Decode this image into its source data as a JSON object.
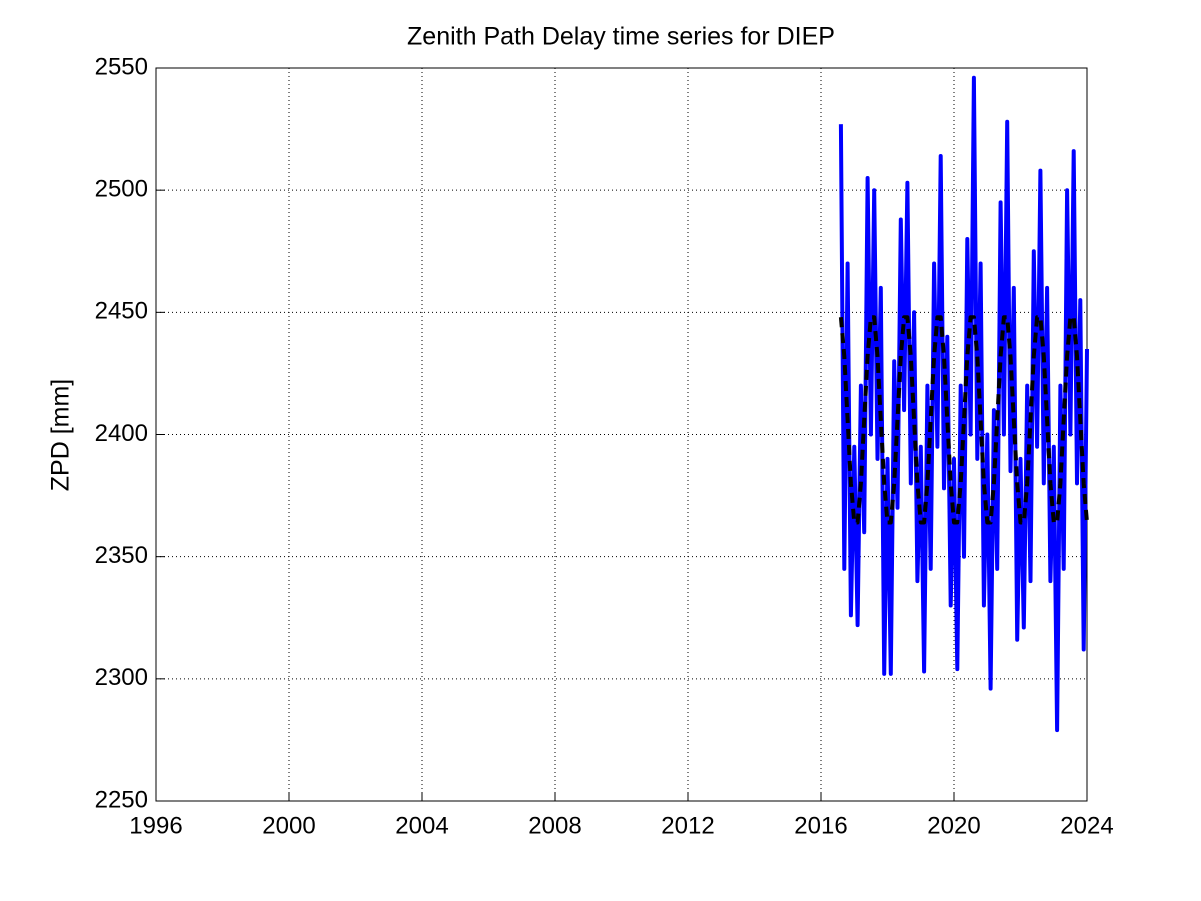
{
  "chart_data": {
    "type": "line",
    "title": "Zenith Path Delay time series for DIEP",
    "y_label": "ZPD [mm]",
    "x": [
      2016.6,
      2016.7,
      2016.8,
      2016.9,
      2017.0,
      2017.1,
      2017.2,
      2017.3,
      2017.4,
      2017.5,
      2017.6,
      2017.7,
      2017.8,
      2017.9,
      2018.0,
      2018.1,
      2018.2,
      2018.3,
      2018.4,
      2018.5,
      2018.6,
      2018.7,
      2018.8,
      2018.9,
      2019.0,
      2019.1,
      2019.2,
      2019.3,
      2019.4,
      2019.5,
      2019.6,
      2019.7,
      2019.8,
      2019.9,
      2020.0,
      2020.1,
      2020.2,
      2020.3,
      2020.4,
      2020.5,
      2020.6,
      2020.7,
      2020.8,
      2020.9,
      2021.0,
      2021.1,
      2021.2,
      2021.3,
      2021.4,
      2021.5,
      2021.6,
      2021.7,
      2021.8,
      2021.9,
      2022.0,
      2022.1,
      2022.2,
      2022.3,
      2022.4,
      2022.5,
      2022.6,
      2022.7,
      2022.8,
      2022.9,
      2023.0,
      2023.1,
      2023.2,
      2023.3,
      2023.4,
      2023.5,
      2023.6,
      2023.7,
      2023.8,
      2023.9,
      2024.0
    ],
    "series": [
      {
        "color": "#0000ff",
        "line_width": 4,
        "dashed": false,
        "values": [
          2527,
          2345,
          2470,
          2326,
          2395,
          2322,
          2420,
          2360,
          2505,
          2400,
          2500,
          2390,
          2460,
          2302,
          2390,
          2302,
          2430,
          2370,
          2488,
          2410,
          2503,
          2380,
          2450,
          2340,
          2395,
          2303,
          2420,
          2345,
          2470,
          2395,
          2514,
          2378,
          2440,
          2330,
          2390,
          2304,
          2420,
          2350,
          2480,
          2400,
          2546,
          2390,
          2470,
          2330,
          2400,
          2296,
          2410,
          2345,
          2495,
          2400,
          2528,
          2385,
          2460,
          2316,
          2390,
          2321,
          2420,
          2340,
          2475,
          2395,
          2508,
          2380,
          2460,
          2340,
          2395,
          2279,
          2420,
          2345,
          2500,
          2400,
          2516,
          2380,
          2455,
          2312,
          2435
        ]
      },
      {
        "color": "#000000",
        "line_width": 4,
        "dashed": true,
        "values": [
          2448,
          2432,
          2406,
          2380,
          2364,
          2364,
          2380,
          2406,
          2432,
          2448,
          2448,
          2432,
          2406,
          2380,
          2364,
          2364,
          2380,
          2406,
          2432,
          2448,
          2448,
          2432,
          2406,
          2380,
          2364,
          2364,
          2380,
          2406,
          2432,
          2448,
          2448,
          2432,
          2406,
          2380,
          2364,
          2364,
          2380,
          2406,
          2432,
          2448,
          2448,
          2432,
          2406,
          2380,
          2364,
          2364,
          2380,
          2406,
          2432,
          2448,
          2448,
          2432,
          2406,
          2380,
          2364,
          2364,
          2380,
          2406,
          2432,
          2448,
          2448,
          2432,
          2406,
          2380,
          2364,
          2364,
          2380,
          2406,
          2432,
          2448,
          2448,
          2432,
          2406,
          2380,
          2364
        ]
      }
    ],
    "xlim": [
      1996,
      2024
    ],
    "xticks": [
      1996,
      2000,
      2004,
      2008,
      2012,
      2016,
      2020,
      2024
    ],
    "ylim": [
      2250,
      2550
    ],
    "yticks": [
      2250,
      2300,
      2350,
      2400,
      2450,
      2500,
      2550
    ],
    "grid": true
  }
}
